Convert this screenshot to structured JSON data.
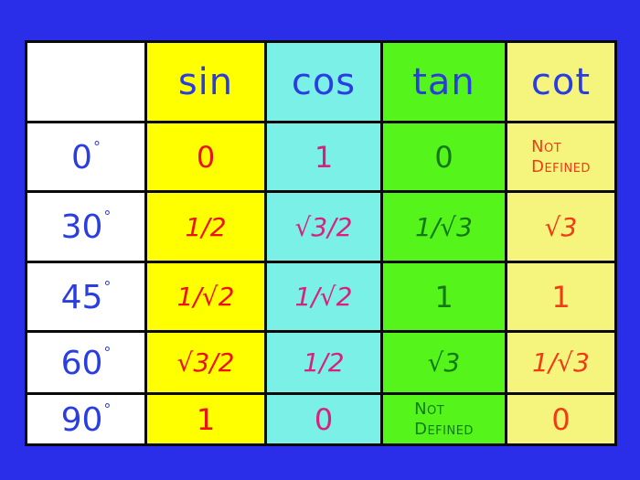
{
  "table": {
    "headers": [
      "",
      "sin",
      "cos",
      "tan",
      "cot"
    ],
    "rows": [
      {
        "angle": "0",
        "sin": "0",
        "cos": "1",
        "tan": "0",
        "cot": "Not Defined"
      },
      {
        "angle": "30",
        "sin": "1/2",
        "cos": "√3/2",
        "tan": "1/√3",
        "cot": "√3"
      },
      {
        "angle": "45",
        "sin": "1/√2",
        "cos": "1/√2",
        "tan": "1",
        "cot": "1"
      },
      {
        "angle": "60",
        "sin": "√3/2",
        "cos": "1/2",
        "tan": "√3",
        "cot": "1/√3"
      },
      {
        "angle": "90",
        "sin": "1",
        "cos": "0",
        "tan": "Not Defined",
        "cot": "0"
      }
    ],
    "degree_symbol": "°",
    "not_defined_line1": "Not",
    "not_defined_line2": "Defined"
  },
  "colors": {
    "background": "#2a2ee8",
    "angle_column": "#ffffff",
    "sin_column": "#ffff00",
    "cos_column": "#7af0e6",
    "tan_column": "#55f51c",
    "cot_column": "#f5f57e",
    "header_text": "#2a3de0",
    "sin_text": "#ee1111",
    "cos_text": "#d8207e",
    "tan_text": "#137a13",
    "cot_text": "#f03c14"
  }
}
